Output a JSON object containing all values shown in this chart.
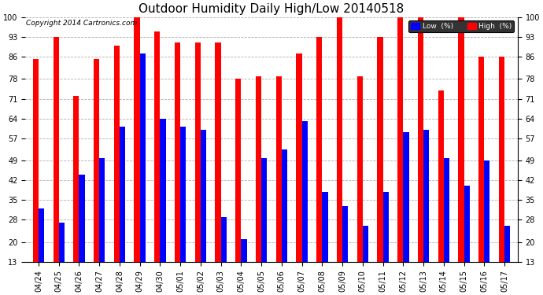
{
  "title": "Outdoor Humidity Daily High/Low 20140518",
  "copyright": "Copyright 2014 Cartronics.com",
  "legend_low_label": "Low  (%)",
  "legend_high_label": "High  (%)",
  "dates": [
    "04/24",
    "04/25",
    "04/26",
    "04/27",
    "04/28",
    "04/29",
    "04/30",
    "05/01",
    "05/02",
    "05/03",
    "05/04",
    "05/05",
    "05/06",
    "05/07",
    "05/08",
    "05/09",
    "05/10",
    "05/11",
    "05/12",
    "05/13",
    "05/14",
    "05/15",
    "05/16",
    "05/17"
  ],
  "high_values": [
    85,
    93,
    72,
    85,
    90,
    100,
    95,
    91,
    91,
    91,
    78,
    79,
    79,
    87,
    93,
    100,
    79,
    93,
    100,
    100,
    74,
    100,
    86,
    86
  ],
  "low_values": [
    32,
    27,
    44,
    50,
    61,
    87,
    64,
    61,
    60,
    29,
    21,
    50,
    53,
    63,
    38,
    33,
    26,
    38,
    59,
    60,
    50,
    40,
    49,
    26
  ],
  "ylim": [
    13,
    100
  ],
  "yticks": [
    13,
    20,
    28,
    35,
    42,
    49,
    57,
    64,
    71,
    78,
    86,
    93,
    100
  ],
  "bar_width": 0.28,
  "high_color": "#ff0000",
  "low_color": "#0000ff",
  "bg_color": "#ffffff",
  "grid_color": "#b0b0b0",
  "title_fontsize": 11,
  "tick_fontsize": 7,
  "copyright_fontsize": 6.5
}
